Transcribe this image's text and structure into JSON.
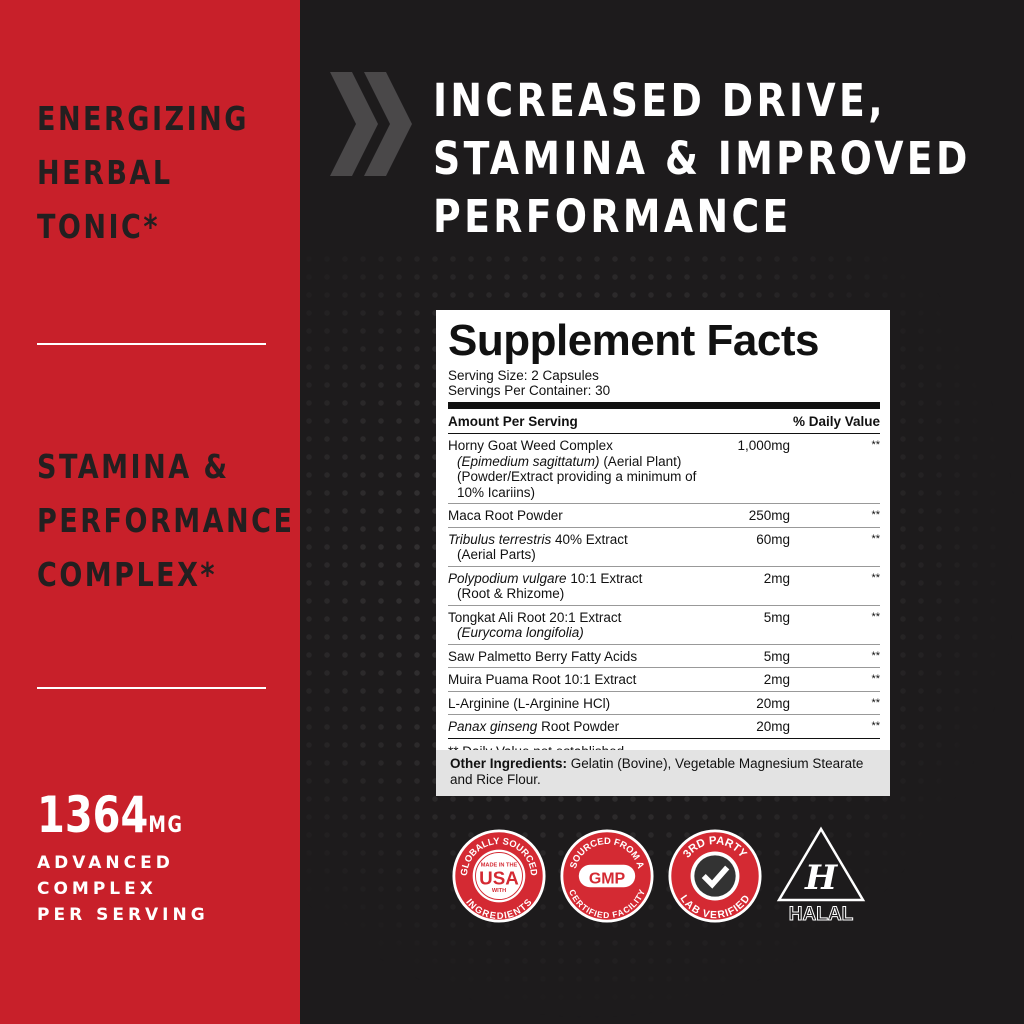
{
  "left_panel": {
    "claim1": [
      "ENERGIZING",
      "HERBAL",
      "TONIC*"
    ],
    "claim2": [
      "STAMINA &",
      "PERFORMANCE",
      "COMPLEX*"
    ],
    "amount": "1364",
    "amount_unit": "MG",
    "amount_desc": [
      "ADVANCED",
      "COMPLEX",
      "PER SERVING"
    ]
  },
  "headline": [
    "INCREASED DRIVE,",
    "STAMINA & IMPROVED",
    "PERFORMANCE"
  ],
  "facts": {
    "title": "Supplement Facts",
    "serving_size": "Serving Size: 2 Capsules",
    "servings": "Servings Per Container: 30",
    "amount_header": "Amount Per Serving",
    "dv_header": "% Daily Value",
    "rows": [
      {
        "name": "Horny Goat Weed Complex",
        "sub": [
          "(Epimedium sagittatum) (Aerial Plant)",
          "(Powder/Extract providing a minimum of 10% Icariins)"
        ],
        "amount": "1,000mg",
        "dv": "**"
      },
      {
        "name": "Maca Root Powder",
        "sub": [],
        "amount": "250mg",
        "dv": "**"
      },
      {
        "name": "Tribulus terrestris 40% Extract",
        "sub": [
          "(Aerial Parts)"
        ],
        "amount": "60mg",
        "dv": "**"
      },
      {
        "name": "Polypodium vulgare 10:1 Extract",
        "sub": [
          "(Root & Rhizome)"
        ],
        "amount": "2mg",
        "dv": "**"
      },
      {
        "name": "Tongkat Ali Root 20:1 Extract",
        "sub": [
          "(Eurycoma longifolia)"
        ],
        "amount": "5mg",
        "dv": "**"
      },
      {
        "name": "Saw Palmetto Berry Fatty Acids",
        "sub": [],
        "amount": "5mg",
        "dv": "**"
      },
      {
        "name": "Muira Puama Root 10:1 Extract",
        "sub": [],
        "amount": "2mg",
        "dv": "**"
      },
      {
        "name": "L-Arginine (L-Arginine HCl)",
        "sub": [],
        "amount": "20mg",
        "dv": "**"
      },
      {
        "name": "Panax ginseng Root Powder",
        "sub": [],
        "amount": "20mg",
        "dv": "**"
      }
    ],
    "footnote": "** Daily Value not established.",
    "other_label": "Other Ingredients:",
    "other_text": " Gelatin (Bovine), Vegetable Magnesium Stearate and Rice Flour."
  },
  "badges": {
    "usa_top": "GLOBALLY SOURCED",
    "usa_mid1": "MADE IN THE",
    "usa_big": "USA",
    "usa_mid2": "WITH",
    "usa_bottom": "INGREDIENTS",
    "gmp_top": "SOURCED FROM A",
    "gmp_big": "GMP",
    "gmp_bottom": "CERTIFIED FACILITY",
    "lab_top": "3RD PARTY",
    "lab_bottom": "LAB VERIFIED",
    "halal": "HALAL"
  },
  "colors": {
    "red": "#c8202a",
    "dark": "#1d1b1c"
  }
}
